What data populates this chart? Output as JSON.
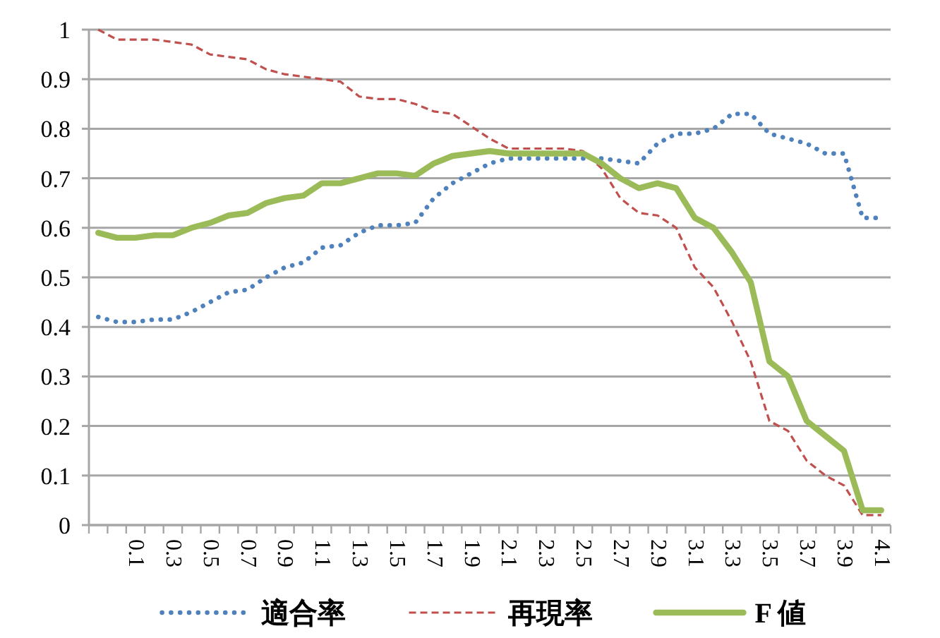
{
  "chart_data": {
    "type": "line",
    "categories": [
      null,
      null,
      "0.1",
      null,
      "0.3",
      null,
      "0.5",
      null,
      "0.7",
      null,
      "0.9",
      null,
      "1.1",
      null,
      "1.3",
      null,
      "1.5",
      null,
      "1.7",
      null,
      "1.9",
      null,
      "2.1",
      null,
      "2.3",
      null,
      "2.5",
      null,
      "2.7",
      null,
      "2.9",
      null,
      "3.1",
      null,
      "3.3",
      null,
      "3.5",
      null,
      "3.7",
      null,
      "3.9",
      null,
      "4.1"
    ],
    "series": [
      {
        "name": "適合率",
        "color": "#4f81bd",
        "line_style": "dotted",
        "values": [
          0.42,
          0.41,
          0.41,
          0.415,
          0.415,
          0.43,
          0.45,
          0.47,
          0.475,
          0.5,
          0.52,
          0.53,
          0.56,
          0.565,
          0.59,
          0.605,
          0.605,
          0.61,
          0.66,
          0.69,
          0.71,
          0.73,
          0.74,
          0.74,
          0.74,
          0.74,
          0.74,
          0.74,
          0.735,
          0.73,
          0.77,
          0.79,
          0.79,
          0.8,
          0.83,
          0.83,
          0.79,
          0.78,
          0.77,
          0.75,
          0.75,
          0.62,
          0.62
        ]
      },
      {
        "name": "再現率",
        "color": "#c0504d",
        "line_style": "dashed",
        "values": [
          1.0,
          0.98,
          0.98,
          0.98,
          0.975,
          0.97,
          0.95,
          0.945,
          0.94,
          0.92,
          0.91,
          0.905,
          0.9,
          0.895,
          0.865,
          0.86,
          0.86,
          0.85,
          0.835,
          0.83,
          0.805,
          0.78,
          0.76,
          0.76,
          0.76,
          0.76,
          0.755,
          0.72,
          0.66,
          0.63,
          0.625,
          0.6,
          0.52,
          0.48,
          0.41,
          0.33,
          0.21,
          0.19,
          0.13,
          0.1,
          0.08,
          0.02,
          0.02
        ]
      },
      {
        "name": "F 値",
        "color": "#9bbb59",
        "line_style": "solid",
        "values": [
          0.59,
          0.58,
          0.58,
          0.585,
          0.585,
          0.6,
          0.61,
          0.625,
          0.63,
          0.65,
          0.66,
          0.665,
          0.69,
          0.69,
          0.7,
          0.71,
          0.71,
          0.705,
          0.73,
          0.745,
          0.75,
          0.755,
          0.75,
          0.75,
          0.75,
          0.75,
          0.75,
          0.73,
          0.7,
          0.68,
          0.69,
          0.68,
          0.62,
          0.6,
          0.55,
          0.49,
          0.33,
          0.3,
          0.21,
          0.18,
          0.15,
          0.03,
          0.03
        ]
      }
    ],
    "ylim": [
      0,
      1
    ],
    "yticks": [
      0,
      0.1,
      0.2,
      0.3,
      0.4,
      0.5,
      0.6,
      0.7,
      0.8,
      0.9,
      1
    ],
    "grid": "y",
    "legend": "bottom"
  }
}
